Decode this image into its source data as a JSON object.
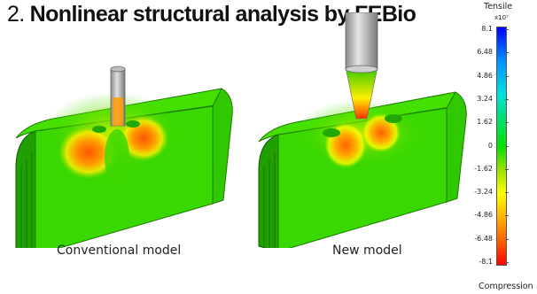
{
  "title": {
    "number": "2.",
    "text": "Nonlinear structural analysis by FEBio"
  },
  "models": [
    {
      "caption": "Conventional model"
    },
    {
      "caption": "New model"
    }
  ],
  "legend": {
    "top_label": "Tensile",
    "bottom_label": "Compression",
    "exponent": "x10⁷",
    "ticks": [
      "8.1",
      "6.48",
      "4.86",
      "3.24",
      "1.62",
      "0",
      "-1.62",
      "-3.24",
      "-4.86",
      "-6.48",
      "-8.1"
    ],
    "colors": [
      "#0000ff",
      "#0090ff",
      "#00e0e0",
      "#00e000",
      "#ffff00",
      "#ffb000",
      "#ff0000"
    ]
  }
}
